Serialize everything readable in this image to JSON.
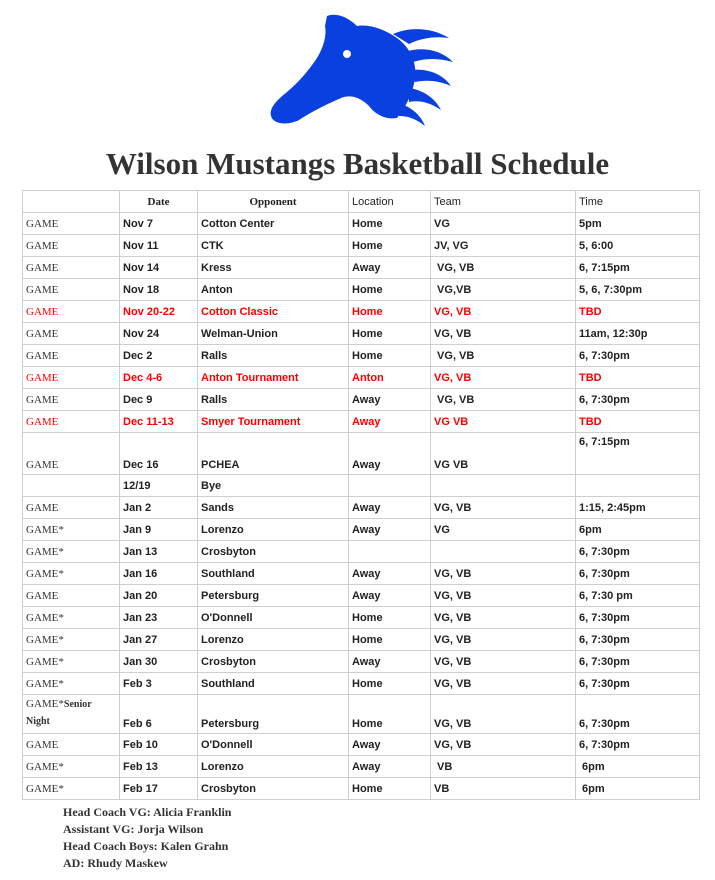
{
  "title": "Wilson Mustangs Basketball Schedule",
  "brand_color": "#0a3fe0",
  "highlight_color": "#ff0000",
  "columns": [
    "",
    "Date",
    "Opponent",
    "Location",
    "Team",
    "Time"
  ],
  "rows": [
    {
      "type": "GAME",
      "date": "Nov 7",
      "opponent": "Cotton Center",
      "location": "Home",
      "team": "VG",
      "time": "5pm"
    },
    {
      "type": "GAME",
      "date": "Nov 11",
      "opponent": "CTK",
      "location": "Home",
      "team": "JV, VG",
      "time": "5, 6:00"
    },
    {
      "type": "GAME",
      "date": "Nov 14",
      "opponent": "Kress",
      "location": "Away",
      "team": " VG, VB",
      "time": "6, 7:15pm"
    },
    {
      "type": "GAME",
      "date": "Nov 18",
      "opponent": "Anton",
      "location": "Home",
      "team": " VG,VB",
      "time": "5, 6, 7:30pm"
    },
    {
      "type": "GAME",
      "date": "Nov 20-22",
      "opponent": "Cotton Classic",
      "location": "Home",
      "team": "VG, VB",
      "time": "TBD",
      "highlight": true
    },
    {
      "type": "GAME",
      "date": "Nov 24",
      "opponent": "Welman-Union",
      "location": "Home",
      "team": "VG, VB",
      "time": "11am, 12:30p"
    },
    {
      "type": "GAME",
      "date": "Dec 2",
      "opponent": "Ralls",
      "location": "Home",
      "team": " VG, VB",
      "time": "6, 7:30pm"
    },
    {
      "type": "GAME",
      "date": "Dec 4-6",
      "opponent": "Anton Tournament",
      "location": "Anton",
      "team": "VG, VB",
      "time": "TBD",
      "highlight": true
    },
    {
      "type": "GAME",
      "date": "Dec 9",
      "opponent": "Ralls",
      "location": "Away",
      "team": " VG, VB",
      "time": "6, 7:30pm"
    },
    {
      "type": "GAME",
      "date": "Dec 11-13",
      "opponent": "Smyer Tournament",
      "location": "Away",
      "team": "VG VB",
      "time": "TBD",
      "highlight": true
    },
    {
      "type": "GAME",
      "date": "Dec 16",
      "opponent": "PCHEA",
      "location": "Away",
      "team": "VG VB",
      "time": "6, 7:15pm",
      "tall": true
    },
    {
      "type": "",
      "date": "12/19",
      "opponent": "Bye",
      "location": "",
      "team": "",
      "time": ""
    },
    {
      "type": "GAME",
      "date": "Jan 2",
      "opponent": "Sands",
      "location": "Away",
      "team": "VG, VB",
      "time": "1:15, 2:45pm"
    },
    {
      "type": "GAME*",
      "date": "Jan 9",
      "opponent": "Lorenzo",
      "location": "Away",
      "team": "VG",
      "time": "6pm"
    },
    {
      "type": "GAME*",
      "date": "Jan 13",
      "opponent": "Crosbyton",
      "location": "",
      "team": "",
      "time": "6, 7:30pm"
    },
    {
      "type": "GAME*",
      "date": "Jan 16",
      "opponent": "Southland",
      "location": "Away",
      "team": "VG, VB",
      "time": "6, 7:30pm"
    },
    {
      "type": "GAME",
      "date": "Jan 20",
      "opponent": "Petersburg",
      "location": "Away",
      "team": "VG, VB",
      "time": "6, 7:30 pm"
    },
    {
      "type": "GAME*",
      "date": "Jan 23",
      "opponent": "O'Donnell",
      "location": "Home",
      "team": "VG, VB",
      "time": "6, 7:30pm"
    },
    {
      "type": "GAME*",
      "date": "Jan 27",
      "opponent": "Lorenzo",
      "location": "Home",
      "team": "VG, VB",
      "time": "6, 7:30pm"
    },
    {
      "type": "GAME*",
      "date": "Jan 30",
      "opponent": "Crosbyton",
      "location": "Away",
      "team": "VG, VB",
      "time": "6, 7:30pm"
    },
    {
      "type": "GAME*",
      "date": "Feb 3",
      "opponent": "Southland",
      "location": "Home",
      "team": "VG, VB",
      "time": "6, 7:30pm"
    },
    {
      "type": "GAME*",
      "type_note": "Senior Night",
      "date": "Feb 6",
      "opponent": "Petersburg",
      "location": "Home",
      "team": "VG, VB",
      "time": "6, 7:30pm",
      "tall": true
    },
    {
      "type": "GAME",
      "date": "Feb 10",
      "opponent": "O'Donnell",
      "location": "Away",
      "team": "VG, VB",
      "time": "6, 7:30pm"
    },
    {
      "type": "GAME*",
      "date": "Feb 13",
      "opponent": "Lorenzo",
      "location": "Away",
      "team": " VB",
      "time": " 6pm"
    },
    {
      "type": "GAME*",
      "date": "Feb 17",
      "opponent": "Crosbyton",
      "location": "Home",
      "team": "VB",
      "time": " 6pm"
    }
  ],
  "footer": [
    "Head Coach VG: Alicia Franklin",
    "Assistant VG: Jorja Wilson",
    "Head Coach Boys: Kalen Grahn",
    "AD: Rhudy Maskew"
  ]
}
